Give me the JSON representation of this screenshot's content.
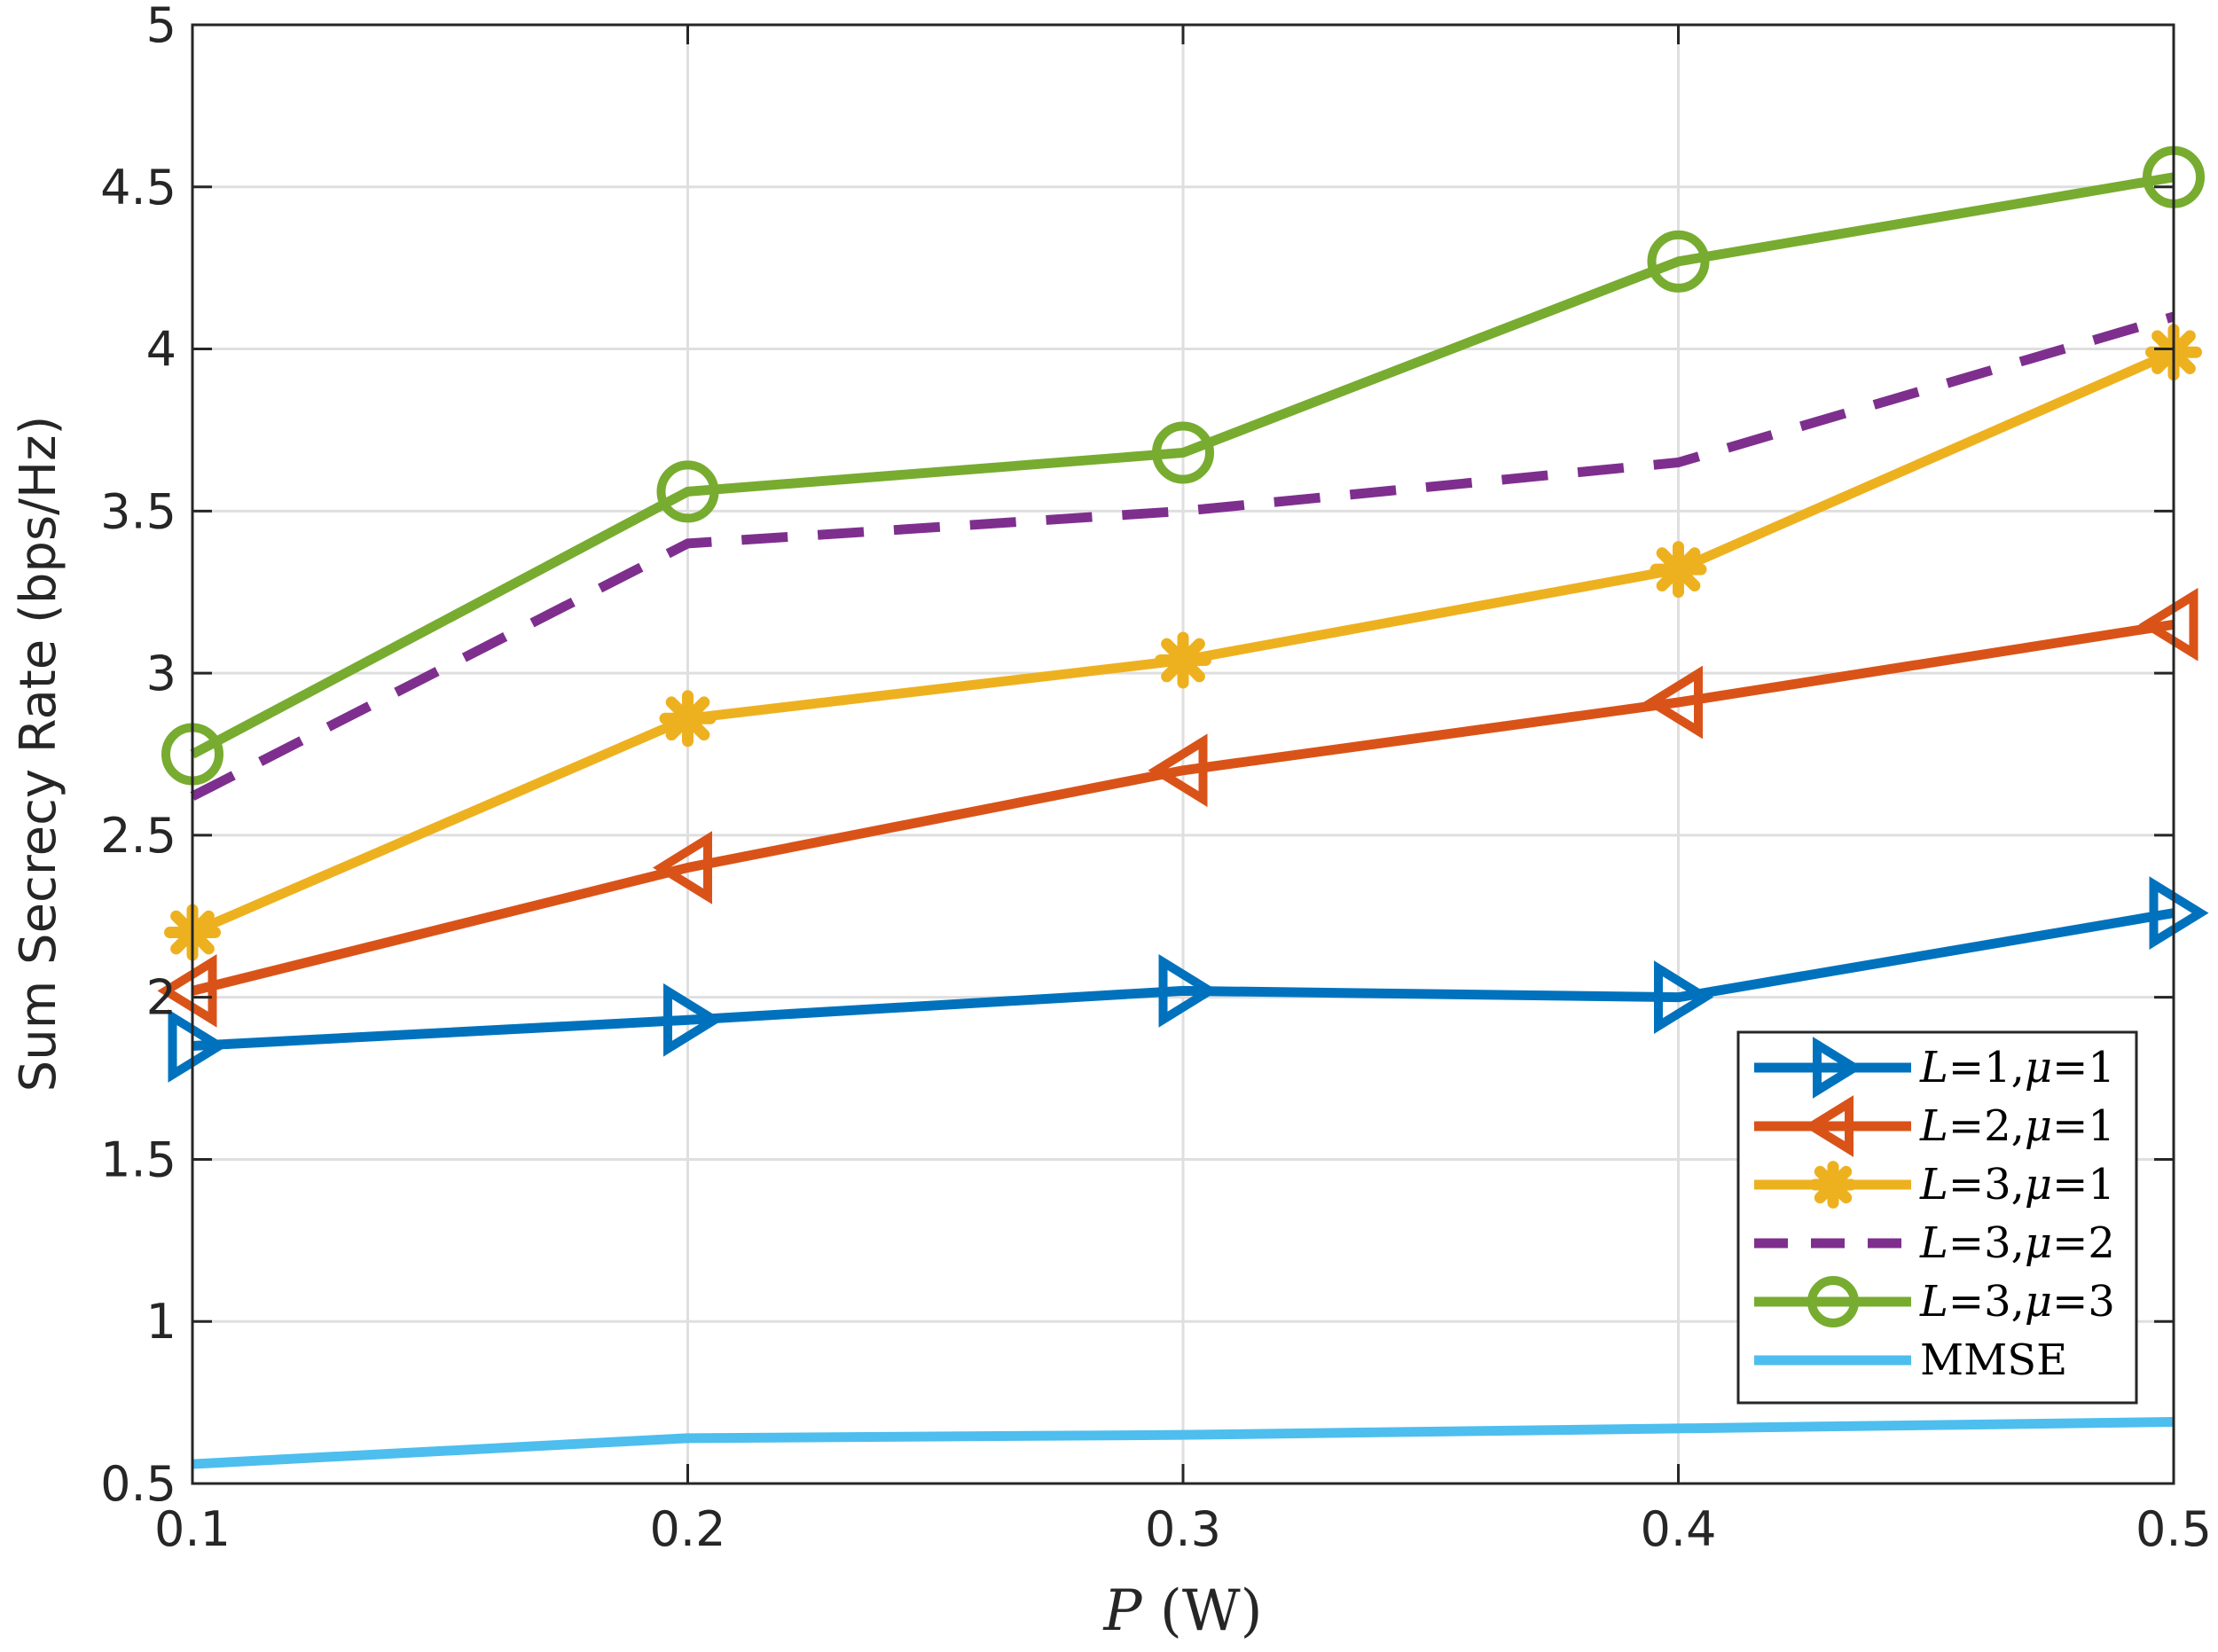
{
  "chart_data": {
    "type": "line",
    "title": "",
    "xlabel_var": "P",
    "xlabel_unit": " (W)",
    "ylabel": "Sum Secrecy Rate  (bps/Hz)",
    "xlim": [
      0.1,
      0.5
    ],
    "ylim": [
      0.5,
      5
    ],
    "grid": true,
    "legend_position": "bottom-right",
    "xticks": [
      0.1,
      0.2,
      0.3,
      0.4,
      0.5
    ],
    "xtick_labels": [
      "0.1",
      "0.2",
      "0.3",
      "0.4",
      "0.5"
    ],
    "yticks": [
      0.5,
      1,
      1.5,
      2,
      2.5,
      3,
      3.5,
      4,
      4.5,
      5
    ],
    "ytick_labels": [
      "0.5",
      "1",
      "1.5",
      "2",
      "2.5",
      "3",
      "3.5",
      "4",
      "4.5",
      "5"
    ],
    "x": [
      0.1,
      0.2,
      0.3,
      0.4,
      0.5
    ],
    "series": [
      {
        "name": "L=1,μ=1",
        "legend": {
          "L": "1",
          "mu": "1"
        },
        "values": [
          1.85,
          1.93,
          2.02,
          2.0,
          2.26
        ],
        "color": "#0072BD",
        "marker": "triangle-right",
        "dash": "solid"
      },
      {
        "name": "L=2,μ=1",
        "legend": {
          "L": "2",
          "mu": "1"
        },
        "values": [
          2.02,
          2.4,
          2.7,
          2.91,
          3.15
        ],
        "color": "#D95319",
        "marker": "triangle-left",
        "dash": "solid"
      },
      {
        "name": "L=3,μ=1",
        "legend": {
          "L": "3",
          "mu": "1"
        },
        "values": [
          2.2,
          2.86,
          3.04,
          3.32,
          3.99
        ],
        "color": "#EDB120",
        "marker": "asterisk",
        "dash": "solid"
      },
      {
        "name": "L=3,μ=2",
        "legend": {
          "L": "3",
          "mu": "2"
        },
        "values": [
          2.62,
          3.4,
          3.5,
          3.65,
          4.1
        ],
        "color": "#7E2F8E",
        "marker": "none",
        "dash": "dashed"
      },
      {
        "name": "L=3,μ=3",
        "legend": {
          "L": "3",
          "mu": "3"
        },
        "values": [
          2.75,
          3.56,
          3.68,
          4.27,
          4.53
        ],
        "color": "#77AC30",
        "marker": "circle",
        "dash": "solid"
      },
      {
        "name": "MMSE",
        "legend": null,
        "values": [
          0.56,
          0.64,
          0.65,
          0.67,
          0.69
        ],
        "color": "#4DBEEE",
        "marker": "none",
        "dash": "solid"
      }
    ]
  }
}
